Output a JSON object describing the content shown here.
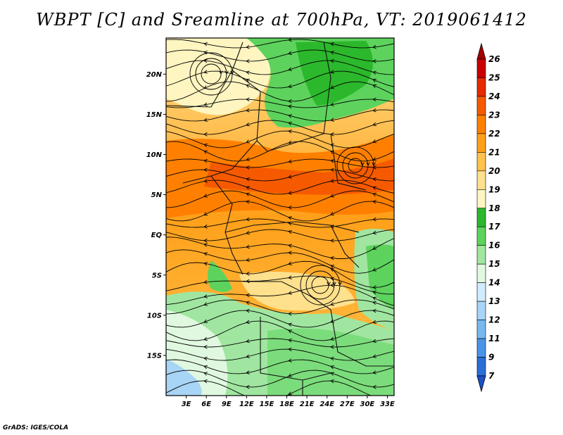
{
  "title": "WBPT [C] and Sreamline at 700hPa, VT: 2019061412",
  "credit": "GrADS: IGES/COLA",
  "map": {
    "lat_labels": [
      "20N",
      "15N",
      "10N",
      "5N",
      "EQ",
      "5S",
      "10S",
      "15S"
    ],
    "lat_values": [
      20,
      15,
      10,
      5,
      0,
      -5,
      -10,
      -15
    ],
    "lon_labels": [
      "3E",
      "6E",
      "9E",
      "12E",
      "15E",
      "18E",
      "21E",
      "24E",
      "27E",
      "30E",
      "33E"
    ],
    "lon_values": [
      3,
      6,
      9,
      12,
      15,
      18,
      21,
      24,
      27,
      30,
      33
    ],
    "lat_range": [
      -20,
      24.5
    ],
    "lon_range": [
      0,
      34
    ]
  },
  "colorbar": {
    "labels": [
      "26",
      "25",
      "24",
      "23",
      "22",
      "21",
      "20",
      "19",
      "18",
      "17",
      "16",
      "15",
      "14",
      "13",
      "12",
      "11",
      "9",
      "7"
    ],
    "colors": [
      "#a50000",
      "#c80000",
      "#e62a00",
      "#f55a00",
      "#ff8000",
      "#ffa01a",
      "#ffc34d",
      "#ffe08c",
      "#fff5c0",
      "#2cb82c",
      "#5dd35d",
      "#a0e6a0",
      "#e0f8e0",
      "#d0ecff",
      "#a8d4f5",
      "#78b8f0",
      "#4a94e8",
      "#2a6ed8",
      "#1e50c8"
    ]
  }
}
